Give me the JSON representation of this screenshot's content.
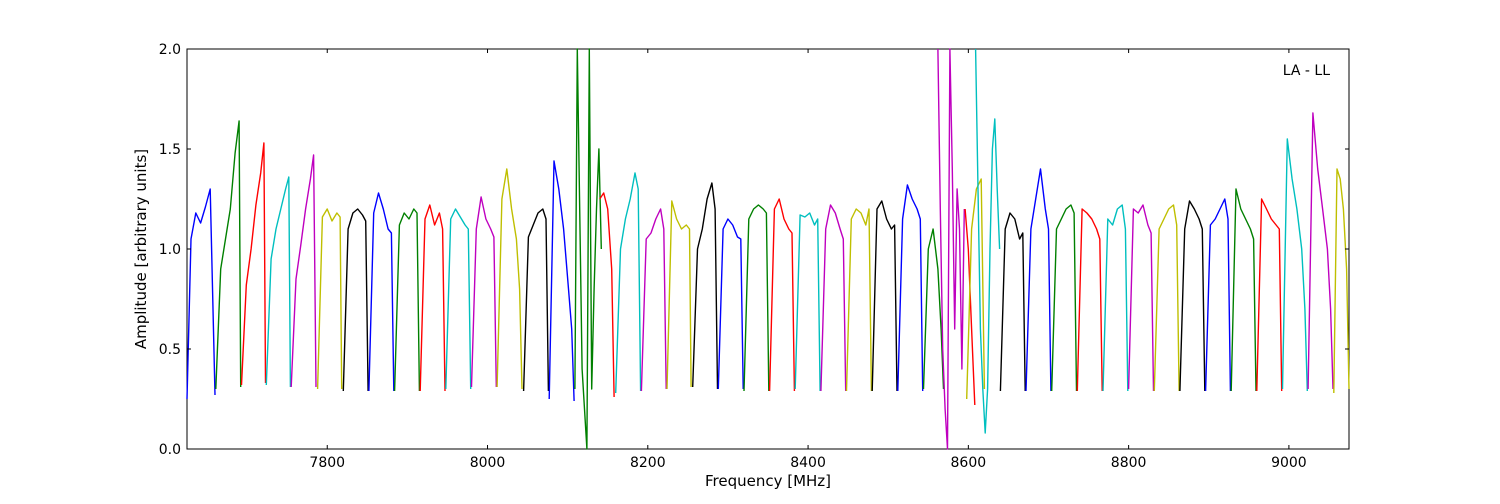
{
  "chart_data": {
    "type": "line",
    "title": "",
    "xlabel": "Frequency [MHz]",
    "ylabel": "Amplitude [arbitrary units]",
    "annotation": "LA - LL",
    "xlim": [
      7625,
      9075
    ],
    "ylim": [
      0,
      2.0
    ],
    "x_ticks": [
      7800,
      8000,
      8200,
      8400,
      8600,
      8800,
      9000
    ],
    "y_ticks": [
      0.0,
      0.5,
      1.0,
      1.5,
      2.0
    ],
    "x_tick_labels": [
      "7800",
      "8000",
      "8200",
      "8400",
      "8600",
      "8800",
      "9000"
    ],
    "y_tick_labels": [
      "0.0",
      "0.5",
      "1.0",
      "1.5",
      "2.0"
    ],
    "grid": false,
    "legend": "none",
    "series": [
      {
        "color": "#0000ff",
        "x": [
          7625,
          7630,
          7636,
          7642,
          7648,
          7654,
          7660
        ],
        "y": [
          0.25,
          1.05,
          1.18,
          1.13,
          1.21,
          1.3,
          0.27
        ]
      },
      {
        "color": "#008000",
        "x": [
          7661,
          7667,
          7673,
          7679,
          7685,
          7690,
          7692
        ],
        "y": [
          0.3,
          0.9,
          1.05,
          1.2,
          1.48,
          1.64,
          0.31
        ]
      },
      {
        "color": "#ff0000",
        "x": [
          7693,
          7699,
          7705,
          7711,
          7717,
          7721,
          7723
        ],
        "y": [
          0.32,
          0.82,
          1.0,
          1.22,
          1.38,
          1.53,
          0.33
        ]
      },
      {
        "color": "#00bfbf",
        "x": [
          7724,
          7730,
          7736,
          7742,
          7748,
          7752,
          7754
        ],
        "y": [
          0.32,
          0.95,
          1.1,
          1.2,
          1.3,
          1.36,
          0.31
        ]
      },
      {
        "color": "#bf00bf",
        "x": [
          7755,
          7761,
          7767,
          7773,
          7779,
          7783,
          7786
        ],
        "y": [
          0.31,
          0.85,
          1.02,
          1.2,
          1.35,
          1.47,
          0.31
        ]
      },
      {
        "color": "#bfbf00",
        "x": [
          7788,
          7794,
          7800,
          7806,
          7812,
          7816,
          7818
        ],
        "y": [
          0.3,
          1.16,
          1.2,
          1.14,
          1.18,
          1.16,
          0.3
        ]
      },
      {
        "color": "#000000",
        "x": [
          7820,
          7826,
          7832,
          7838,
          7844,
          7848,
          7851
        ],
        "y": [
          0.29,
          1.1,
          1.18,
          1.2,
          1.17,
          1.14,
          0.29
        ]
      },
      {
        "color": "#0000ff",
        "x": [
          7852,
          7858,
          7864,
          7870,
          7876,
          7880,
          7883
        ],
        "y": [
          0.29,
          1.18,
          1.28,
          1.2,
          1.1,
          1.08,
          0.29
        ]
      },
      {
        "color": "#008000",
        "x": [
          7884,
          7890,
          7896,
          7902,
          7908,
          7912,
          7915
        ],
        "y": [
          0.29,
          1.12,
          1.18,
          1.15,
          1.2,
          1.18,
          0.29
        ]
      },
      {
        "color": "#ff0000",
        "x": [
          7916,
          7922,
          7928,
          7934,
          7940,
          7944,
          7947
        ],
        "y": [
          0.29,
          1.15,
          1.22,
          1.12,
          1.18,
          1.1,
          0.29
        ]
      },
      {
        "color": "#00bfbf",
        "x": [
          7948,
          7954,
          7960,
          7966,
          7972,
          7976,
          7979
        ],
        "y": [
          0.3,
          1.15,
          1.2,
          1.16,
          1.12,
          1.1,
          0.3
        ]
      },
      {
        "color": "#bf00bf",
        "x": [
          7980,
          7986,
          7992,
          7998,
          8004,
          8008,
          8011
        ],
        "y": [
          0.31,
          1.1,
          1.26,
          1.15,
          1.1,
          1.06,
          0.31
        ]
      },
      {
        "color": "#bfbf00",
        "x": [
          8012,
          8018,
          8024,
          8030,
          8036,
          8040,
          8043
        ],
        "y": [
          0.31,
          1.25,
          1.4,
          1.2,
          1.05,
          0.8,
          0.3
        ]
      },
      {
        "color": "#000000",
        "x": [
          8045,
          8051,
          8057,
          8063,
          8069,
          8073,
          8076
        ],
        "y": [
          0.29,
          1.06,
          1.12,
          1.18,
          1.2,
          1.15,
          0.29
        ]
      },
      {
        "color": "#0000ff",
        "x": [
          8077,
          8083,
          8089,
          8095,
          8101,
          8105,
          8108
        ],
        "y": [
          0.25,
          1.44,
          1.3,
          1.1,
          0.8,
          0.6,
          0.24
        ]
      },
      {
        "color": "#008000",
        "x": [
          8109,
          8112,
          8115,
          8118,
          8121,
          8124,
          8127,
          8130,
          8133,
          8136,
          8139,
          8142
        ],
        "y": [
          0.3,
          2.0,
          1.2,
          0.4,
          0.2,
          0.0,
          2.0,
          0.3,
          0.8,
          1.2,
          1.5,
          1.0
        ]
      },
      {
        "color": "#ff0000",
        "x": [
          8140,
          8145,
          8150,
          8155,
          8158
        ],
        "y": [
          1.25,
          1.28,
          1.2,
          0.9,
          0.26
        ]
      },
      {
        "color": "#00bfbf",
        "x": [
          8160,
          8166,
          8172,
          8178,
          8184,
          8188,
          8191
        ],
        "y": [
          0.28,
          1.0,
          1.15,
          1.25,
          1.38,
          1.3,
          0.29
        ]
      },
      {
        "color": "#bf00bf",
        "x": [
          8192,
          8198,
          8204,
          8210,
          8216,
          8220,
          8223
        ],
        "y": [
          0.29,
          1.05,
          1.08,
          1.15,
          1.2,
          1.1,
          0.3
        ]
      },
      {
        "color": "#bfbf00",
        "x": [
          8224,
          8230,
          8236,
          8242,
          8248,
          8252,
          8254
        ],
        "y": [
          0.3,
          1.24,
          1.15,
          1.1,
          1.12,
          1.1,
          0.31
        ]
      },
      {
        "color": "#000000",
        "x": [
          8256,
          8262,
          8268,
          8274,
          8280,
          8284,
          8287
        ],
        "y": [
          0.31,
          1.0,
          1.1,
          1.25,
          1.33,
          1.2,
          0.3
        ]
      },
      {
        "color": "#0000ff",
        "x": [
          8288,
          8294,
          8300,
          8306,
          8312,
          8316,
          8319
        ],
        "y": [
          0.3,
          1.1,
          1.15,
          1.12,
          1.06,
          1.05,
          0.3
        ]
      },
      {
        "color": "#008000",
        "x": [
          8320,
          8326,
          8332,
          8338,
          8344,
          8348,
          8351
        ],
        "y": [
          0.29,
          1.15,
          1.2,
          1.22,
          1.2,
          1.18,
          0.29
        ]
      },
      {
        "color": "#ff0000",
        "x": [
          8352,
          8358,
          8364,
          8370,
          8376,
          8380,
          8383
        ],
        "y": [
          0.29,
          1.2,
          1.25,
          1.15,
          1.1,
          1.08,
          0.29
        ]
      },
      {
        "color": "#00bfbf",
        "x": [
          8384,
          8390,
          8396,
          8402,
          8408,
          8412,
          8415
        ],
        "y": [
          0.3,
          1.17,
          1.16,
          1.18,
          1.12,
          1.15,
          0.29
        ]
      },
      {
        "color": "#bf00bf",
        "x": [
          8416,
          8422,
          8428,
          8434,
          8440,
          8444,
          8447
        ],
        "y": [
          0.29,
          1.1,
          1.22,
          1.18,
          1.1,
          1.05,
          0.29
        ]
      },
      {
        "color": "#bfbf00",
        "x": [
          8448,
          8454,
          8460,
          8466,
          8472,
          8476,
          8479
        ],
        "y": [
          0.29,
          1.15,
          1.2,
          1.18,
          1.12,
          1.2,
          0.29
        ]
      },
      {
        "color": "#000000",
        "x": [
          8480,
          8486,
          8492,
          8498,
          8504,
          8508,
          8511
        ],
        "y": [
          0.29,
          1.2,
          1.24,
          1.15,
          1.1,
          1.12,
          0.29
        ]
      },
      {
        "color": "#0000ff",
        "x": [
          8512,
          8518,
          8524,
          8530,
          8536,
          8540,
          8543
        ],
        "y": [
          0.29,
          1.15,
          1.32,
          1.25,
          1.2,
          1.15,
          0.29
        ]
      },
      {
        "color": "#008000",
        "x": [
          8544,
          8550,
          8556,
          8562,
          8566,
          8569
        ],
        "y": [
          0.3,
          1.0,
          1.1,
          0.9,
          0.6,
          0.3
        ]
      },
      {
        "color": "#bf00bf",
        "x": [
          8562,
          8565,
          8568,
          8571,
          8574,
          8577,
          8580,
          8583,
          8586,
          8589,
          8592,
          8595
        ],
        "y": [
          2.0,
          1.2,
          0.5,
          0.2,
          0.0,
          2.0,
          1.4,
          0.6,
          1.3,
          1.1,
          0.4,
          1.2
        ]
      },
      {
        "color": "#ff0000",
        "x": [
          8596,
          8600,
          8604,
          8608
        ],
        "y": [
          1.2,
          1.0,
          0.6,
          0.22
        ]
      },
      {
        "color": "#bfbf00",
        "x": [
          8598,
          8604,
          8610,
          8616,
          8620
        ],
        "y": [
          0.25,
          1.1,
          1.3,
          1.35,
          0.3
        ]
      },
      {
        "color": "#00bfbf",
        "x": [
          8609,
          8612,
          8615,
          8618,
          8621,
          8624,
          8627,
          8630,
          8633,
          8636,
          8639
        ],
        "y": [
          2.0,
          1.3,
          0.6,
          0.3,
          0.08,
          0.3,
          1.0,
          1.5,
          1.65,
          1.3,
          1.0
        ]
      },
      {
        "color": "#000000",
        "x": [
          8640,
          8646,
          8652,
          8658,
          8664,
          8668,
          8671
        ],
        "y": [
          0.29,
          1.1,
          1.18,
          1.15,
          1.05,
          1.08,
          0.29
        ]
      },
      {
        "color": "#0000ff",
        "x": [
          8672,
          8678,
          8684,
          8690,
          8696,
          8700,
          8703
        ],
        "y": [
          0.29,
          1.1,
          1.25,
          1.4,
          1.2,
          1.1,
          0.29
        ]
      },
      {
        "color": "#008000",
        "x": [
          8704,
          8710,
          8716,
          8722,
          8728,
          8732,
          8735
        ],
        "y": [
          0.29,
          1.1,
          1.15,
          1.2,
          1.22,
          1.18,
          0.29
        ]
      },
      {
        "color": "#ff0000",
        "x": [
          8736,
          8742,
          8748,
          8754,
          8760,
          8764,
          8767
        ],
        "y": [
          0.29,
          1.2,
          1.18,
          1.15,
          1.1,
          1.05,
          0.29
        ]
      },
      {
        "color": "#00bfbf",
        "x": [
          8768,
          8774,
          8780,
          8786,
          8792,
          8796,
          8799
        ],
        "y": [
          0.29,
          1.15,
          1.12,
          1.2,
          1.22,
          1.1,
          0.29
        ]
      },
      {
        "color": "#bf00bf",
        "x": [
          8800,
          8806,
          8812,
          8818,
          8824,
          8828,
          8831
        ],
        "y": [
          0.3,
          1.2,
          1.18,
          1.22,
          1.12,
          1.08,
          0.29
        ]
      },
      {
        "color": "#bfbf00",
        "x": [
          8832,
          8838,
          8844,
          8850,
          8856,
          8860,
          8863
        ],
        "y": [
          0.29,
          1.1,
          1.15,
          1.2,
          1.22,
          1.12,
          0.29
        ]
      },
      {
        "color": "#000000",
        "x": [
          8864,
          8870,
          8876,
          8882,
          8888,
          8892,
          8895
        ],
        "y": [
          0.29,
          1.1,
          1.24,
          1.2,
          1.15,
          1.1,
          0.29
        ]
      },
      {
        "color": "#0000ff",
        "x": [
          8896,
          8902,
          8908,
          8914,
          8920,
          8924,
          8927
        ],
        "y": [
          0.29,
          1.12,
          1.15,
          1.2,
          1.25,
          1.15,
          0.29
        ]
      },
      {
        "color": "#008000",
        "x": [
          8928,
          8934,
          8940,
          8946,
          8952,
          8956,
          8959
        ],
        "y": [
          0.29,
          1.3,
          1.2,
          1.15,
          1.1,
          1.05,
          0.29
        ]
      },
      {
        "color": "#ff0000",
        "x": [
          8960,
          8966,
          8972,
          8978,
          8984,
          8988,
          8991
        ],
        "y": [
          0.29,
          1.25,
          1.2,
          1.15,
          1.12,
          1.1,
          0.29
        ]
      },
      {
        "color": "#00bfbf",
        "x": [
          8992,
          8998,
          9004,
          9010,
          9016,
          9020,
          9023
        ],
        "y": [
          0.3,
          1.55,
          1.35,
          1.2,
          1.0,
          0.7,
          0.29
        ]
      },
      {
        "color": "#bf00bf",
        "x": [
          9024,
          9030,
          9036,
          9042,
          9048,
          9052,
          9055
        ],
        "y": [
          0.3,
          1.68,
          1.4,
          1.2,
          1.0,
          0.7,
          0.3
        ]
      },
      {
        "color": "#bfbf00",
        "x": [
          9056,
          9060,
          9064,
          9068,
          9072,
          9075
        ],
        "y": [
          0.28,
          1.4,
          1.35,
          1.2,
          0.9,
          0.3
        ]
      }
    ]
  }
}
